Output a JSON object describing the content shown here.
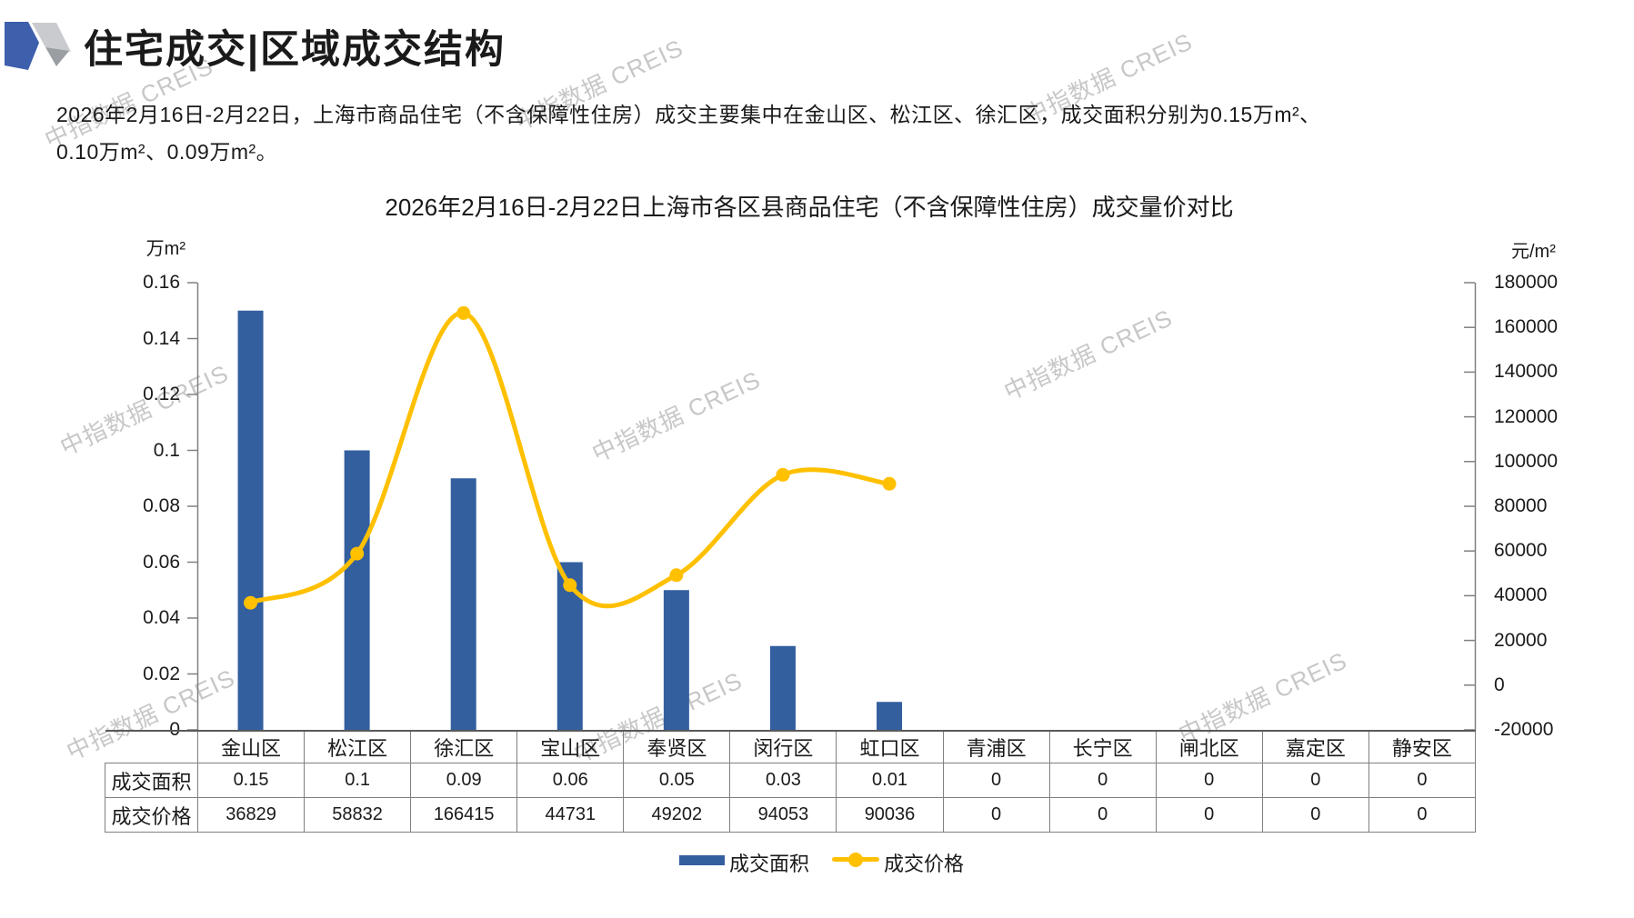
{
  "header": {
    "title": "住宅成交|区域成交结构"
  },
  "intro": {
    "line1": "2026年2月16日-2月22日，上海市商品住宅（不含保障性住房）成交主要集中在金山区、松江区、徐汇区，成交面积分别为0.15万m²、",
    "line2": "0.10万m²、0.09万m²。"
  },
  "watermark": {
    "text": "中指数据 CREIS"
  },
  "chart_data": {
    "type": "bar+line",
    "title": "2026年2月16日-2月22日上海市各区县商品住宅（不含保障性住房）成交量价对比",
    "categories": [
      "金山区",
      "松江区",
      "徐汇区",
      "宝山区",
      "奉贤区",
      "闵行区",
      "虹口区",
      "青浦区",
      "长宁区",
      "闸北区",
      "嘉定区",
      "静安区"
    ],
    "series": [
      {
        "name": "成交面积",
        "type": "bar",
        "axis": "left",
        "color": "#335F9F",
        "values": [
          0.15,
          0.1,
          0.09,
          0.06,
          0.05,
          0.03,
          0.01,
          0,
          0,
          0,
          0,
          0
        ]
      },
      {
        "name": "成交价格",
        "type": "line",
        "axis": "right",
        "color": "#FFC000",
        "values": [
          36829,
          58832,
          166415,
          44731,
          49202,
          94053,
          90036,
          0,
          0,
          0,
          0,
          0
        ]
      }
    ],
    "left_axis": {
      "label": "万m²",
      "min": 0,
      "max": 0.16,
      "step": 0.02,
      "ticks": [
        "0.16",
        "0.14",
        "0.12",
        "0.1",
        "0.08",
        "0.06",
        "0.04",
        "0.02",
        "0"
      ]
    },
    "right_axis": {
      "label": "元/m²",
      "min": -20000,
      "max": 180000,
      "step": 20000,
      "ticks": [
        "180000",
        "160000",
        "140000",
        "120000",
        "100000",
        "80000",
        "60000",
        "40000",
        "20000",
        "0",
        "-20000"
      ]
    },
    "legend": [
      "成交面积",
      "成交价格"
    ]
  },
  "table": {
    "row_headers": [
      "成交面积",
      "成交价格"
    ]
  }
}
